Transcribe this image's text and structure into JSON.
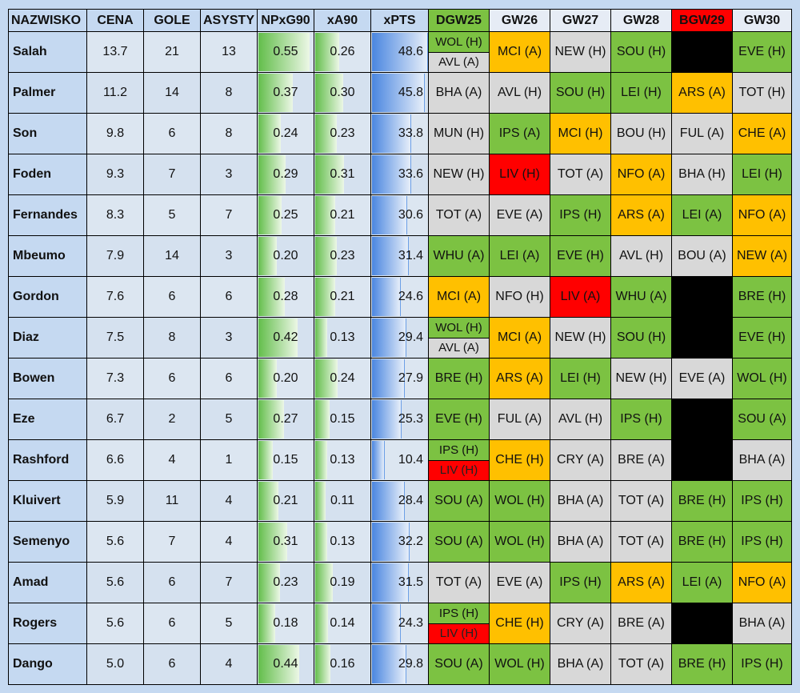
{
  "headers": [
    "NAZWISKO",
    "CENA",
    "GOLE",
    "ASYSTY",
    "NPxG90",
    "xA90",
    "xPTS",
    "DGW25",
    "GW26",
    "GW27",
    "GW28",
    "BGW29",
    "GW30"
  ],
  "colors": {
    "green": "#7cc242",
    "grey": "#d8d8d8",
    "orange": "#ffc000",
    "red": "#ff0000",
    "black": "#000000",
    "header_dgw": "#7cc242",
    "header_bgw": "#ff0000",
    "background": "#c5d9f1"
  },
  "bar_max": {
    "npxg90": 0.6,
    "xa90": 0.6,
    "xpts": 50
  },
  "rows": [
    {
      "name": "Salah",
      "price": "13.7",
      "goals": "21",
      "assists": "13",
      "npxg90": "0.55",
      "xa90": "0.26",
      "xpts": "48.6",
      "fixtures": [
        [
          {
            "t": "WOL (H)",
            "c": "green"
          },
          {
            "t": "AVL (A)",
            "c": "grey"
          }
        ],
        [
          {
            "t": "MCI (A)",
            "c": "orange"
          }
        ],
        [
          {
            "t": "NEW (H)",
            "c": "grey"
          }
        ],
        [
          {
            "t": "SOU (H)",
            "c": "green"
          }
        ],
        [
          {
            "t": "",
            "c": "black"
          }
        ],
        [
          {
            "t": "EVE (H)",
            "c": "green"
          }
        ]
      ]
    },
    {
      "name": "Palmer",
      "price": "11.2",
      "goals": "14",
      "assists": "8",
      "npxg90": "0.37",
      "xa90": "0.30",
      "xpts": "45.8",
      "fixtures": [
        [
          {
            "t": "BHA (A)",
            "c": "grey"
          }
        ],
        [
          {
            "t": "AVL (H)",
            "c": "grey"
          }
        ],
        [
          {
            "t": "SOU (H)",
            "c": "green"
          }
        ],
        [
          {
            "t": "LEI (H)",
            "c": "green"
          }
        ],
        [
          {
            "t": "ARS (A)",
            "c": "orange"
          }
        ],
        [
          {
            "t": "TOT (H)",
            "c": "grey"
          }
        ]
      ]
    },
    {
      "name": "Son",
      "price": "9.8",
      "goals": "6",
      "assists": "8",
      "npxg90": "0.24",
      "xa90": "0.23",
      "xpts": "33.8",
      "fixtures": [
        [
          {
            "t": "MUN (H)",
            "c": "grey"
          }
        ],
        [
          {
            "t": "IPS (A)",
            "c": "green"
          }
        ],
        [
          {
            "t": "MCI (H)",
            "c": "orange"
          }
        ],
        [
          {
            "t": "BOU (H)",
            "c": "grey"
          }
        ],
        [
          {
            "t": "FUL (A)",
            "c": "grey"
          }
        ],
        [
          {
            "t": "CHE (A)",
            "c": "orange"
          }
        ]
      ]
    },
    {
      "name": "Foden",
      "price": "9.3",
      "goals": "7",
      "assists": "3",
      "npxg90": "0.29",
      "xa90": "0.31",
      "xpts": "33.6",
      "fixtures": [
        [
          {
            "t": "NEW (H)",
            "c": "grey"
          }
        ],
        [
          {
            "t": "LIV (H)",
            "c": "red"
          }
        ],
        [
          {
            "t": "TOT (A)",
            "c": "grey"
          }
        ],
        [
          {
            "t": "NFO (A)",
            "c": "orange"
          }
        ],
        [
          {
            "t": "BHA (H)",
            "c": "grey"
          }
        ],
        [
          {
            "t": "LEI (H)",
            "c": "green"
          }
        ]
      ]
    },
    {
      "name": "Fernandes",
      "price": "8.3",
      "goals": "5",
      "assists": "7",
      "npxg90": "0.25",
      "xa90": "0.21",
      "xpts": "30.6",
      "fixtures": [
        [
          {
            "t": "TOT (A)",
            "c": "grey"
          }
        ],
        [
          {
            "t": "EVE (A)",
            "c": "grey"
          }
        ],
        [
          {
            "t": "IPS (H)",
            "c": "green"
          }
        ],
        [
          {
            "t": "ARS (A)",
            "c": "orange"
          }
        ],
        [
          {
            "t": "LEI (A)",
            "c": "green"
          }
        ],
        [
          {
            "t": "NFO (A)",
            "c": "orange"
          }
        ]
      ]
    },
    {
      "name": "Mbeumo",
      "price": "7.9",
      "goals": "14",
      "assists": "3",
      "npxg90": "0.20",
      "xa90": "0.23",
      "xpts": "31.4",
      "fixtures": [
        [
          {
            "t": "WHU (A)",
            "c": "green"
          }
        ],
        [
          {
            "t": "LEI (A)",
            "c": "green"
          }
        ],
        [
          {
            "t": "EVE (H)",
            "c": "green"
          }
        ],
        [
          {
            "t": "AVL (H)",
            "c": "grey"
          }
        ],
        [
          {
            "t": "BOU (A)",
            "c": "grey"
          }
        ],
        [
          {
            "t": "NEW (A)",
            "c": "orange"
          }
        ]
      ]
    },
    {
      "name": "Gordon",
      "price": "7.6",
      "goals": "6",
      "assists": "6",
      "npxg90": "0.28",
      "xa90": "0.21",
      "xpts": "24.6",
      "fixtures": [
        [
          {
            "t": "MCI (A)",
            "c": "orange"
          }
        ],
        [
          {
            "t": "NFO (H)",
            "c": "grey"
          }
        ],
        [
          {
            "t": "LIV (A)",
            "c": "red"
          }
        ],
        [
          {
            "t": "WHU (A)",
            "c": "green"
          }
        ],
        [
          {
            "t": "",
            "c": "black"
          }
        ],
        [
          {
            "t": "BRE (H)",
            "c": "green"
          }
        ]
      ]
    },
    {
      "name": "Diaz",
      "price": "7.5",
      "goals": "8",
      "assists": "3",
      "npxg90": "0.42",
      "xa90": "0.13",
      "xpts": "29.4",
      "fixtures": [
        [
          {
            "t": "WOL (H)",
            "c": "green"
          },
          {
            "t": "AVL (A)",
            "c": "grey"
          }
        ],
        [
          {
            "t": "MCI (A)",
            "c": "orange"
          }
        ],
        [
          {
            "t": "NEW (H)",
            "c": "grey"
          }
        ],
        [
          {
            "t": "SOU (H)",
            "c": "green"
          }
        ],
        [
          {
            "t": "",
            "c": "black"
          }
        ],
        [
          {
            "t": "EVE (H)",
            "c": "green"
          }
        ]
      ]
    },
    {
      "name": "Bowen",
      "price": "7.3",
      "goals": "6",
      "assists": "6",
      "npxg90": "0.20",
      "xa90": "0.24",
      "xpts": "27.9",
      "fixtures": [
        [
          {
            "t": "BRE (H)",
            "c": "green"
          }
        ],
        [
          {
            "t": "ARS (A)",
            "c": "orange"
          }
        ],
        [
          {
            "t": "LEI (H)",
            "c": "green"
          }
        ],
        [
          {
            "t": "NEW (H)",
            "c": "grey"
          }
        ],
        [
          {
            "t": "EVE (A)",
            "c": "grey"
          }
        ],
        [
          {
            "t": "WOL (H)",
            "c": "green"
          }
        ]
      ]
    },
    {
      "name": "Eze",
      "price": "6.7",
      "goals": "2",
      "assists": "5",
      "npxg90": "0.27",
      "xa90": "0.15",
      "xpts": "25.3",
      "fixtures": [
        [
          {
            "t": "EVE (H)",
            "c": "green"
          }
        ],
        [
          {
            "t": "FUL (A)",
            "c": "grey"
          }
        ],
        [
          {
            "t": "AVL (H)",
            "c": "grey"
          }
        ],
        [
          {
            "t": "IPS (H)",
            "c": "green"
          }
        ],
        [
          {
            "t": "",
            "c": "black"
          }
        ],
        [
          {
            "t": "SOU (A)",
            "c": "green"
          }
        ]
      ]
    },
    {
      "name": "Rashford",
      "price": "6.6",
      "goals": "4",
      "assists": "1",
      "npxg90": "0.15",
      "xa90": "0.13",
      "xpts": "10.4",
      "fixtures": [
        [
          {
            "t": "IPS (H)",
            "c": "green"
          },
          {
            "t": "LIV (H)",
            "c": "red"
          }
        ],
        [
          {
            "t": "CHE (H)",
            "c": "orange"
          }
        ],
        [
          {
            "t": "CRY (A)",
            "c": "grey"
          }
        ],
        [
          {
            "t": "BRE (A)",
            "c": "grey"
          }
        ],
        [
          {
            "t": "",
            "c": "black"
          }
        ],
        [
          {
            "t": "BHA (A)",
            "c": "grey"
          }
        ]
      ]
    },
    {
      "name": "Kluivert",
      "price": "5.9",
      "goals": "11",
      "assists": "4",
      "npxg90": "0.21",
      "xa90": "0.11",
      "xpts": "28.4",
      "fixtures": [
        [
          {
            "t": "SOU (A)",
            "c": "green"
          }
        ],
        [
          {
            "t": "WOL (H)",
            "c": "green"
          }
        ],
        [
          {
            "t": "BHA (A)",
            "c": "grey"
          }
        ],
        [
          {
            "t": "TOT (A)",
            "c": "grey"
          }
        ],
        [
          {
            "t": "BRE (H)",
            "c": "green"
          }
        ],
        [
          {
            "t": "IPS (H)",
            "c": "green"
          }
        ]
      ]
    },
    {
      "name": "Semenyo",
      "price": "5.6",
      "goals": "7",
      "assists": "4",
      "npxg90": "0.31",
      "xa90": "0.13",
      "xpts": "32.2",
      "fixtures": [
        [
          {
            "t": "SOU (A)",
            "c": "green"
          }
        ],
        [
          {
            "t": "WOL (H)",
            "c": "green"
          }
        ],
        [
          {
            "t": "BHA (A)",
            "c": "grey"
          }
        ],
        [
          {
            "t": "TOT (A)",
            "c": "grey"
          }
        ],
        [
          {
            "t": "BRE (H)",
            "c": "green"
          }
        ],
        [
          {
            "t": "IPS (H)",
            "c": "green"
          }
        ]
      ]
    },
    {
      "name": "Amad",
      "price": "5.6",
      "goals": "6",
      "assists": "7",
      "npxg90": "0.23",
      "xa90": "0.19",
      "xpts": "31.5",
      "fixtures": [
        [
          {
            "t": "TOT (A)",
            "c": "grey"
          }
        ],
        [
          {
            "t": "EVE (A)",
            "c": "grey"
          }
        ],
        [
          {
            "t": "IPS (H)",
            "c": "green"
          }
        ],
        [
          {
            "t": "ARS (A)",
            "c": "orange"
          }
        ],
        [
          {
            "t": "LEI (A)",
            "c": "green"
          }
        ],
        [
          {
            "t": "NFO (A)",
            "c": "orange"
          }
        ]
      ]
    },
    {
      "name": "Rogers",
      "price": "5.6",
      "goals": "6",
      "assists": "5",
      "npxg90": "0.18",
      "xa90": "0.14",
      "xpts": "24.3",
      "fixtures": [
        [
          {
            "t": "IPS (H)",
            "c": "green"
          },
          {
            "t": "LIV (H)",
            "c": "red"
          }
        ],
        [
          {
            "t": "CHE (H)",
            "c": "orange"
          }
        ],
        [
          {
            "t": "CRY (A)",
            "c": "grey"
          }
        ],
        [
          {
            "t": "BRE (A)",
            "c": "grey"
          }
        ],
        [
          {
            "t": "",
            "c": "black"
          }
        ],
        [
          {
            "t": "BHA (A)",
            "c": "grey"
          }
        ]
      ]
    },
    {
      "name": "Dango",
      "price": "5.0",
      "goals": "6",
      "assists": "4",
      "npxg90": "0.44",
      "xa90": "0.16",
      "xpts": "29.8",
      "fixtures": [
        [
          {
            "t": "SOU (A)",
            "c": "green"
          }
        ],
        [
          {
            "t": "WOL (H)",
            "c": "green"
          }
        ],
        [
          {
            "t": "BHA (A)",
            "c": "grey"
          }
        ],
        [
          {
            "t": "TOT (A)",
            "c": "grey"
          }
        ],
        [
          {
            "t": "BRE (H)",
            "c": "green"
          }
        ],
        [
          {
            "t": "IPS (H)",
            "c": "green"
          }
        ]
      ]
    }
  ]
}
